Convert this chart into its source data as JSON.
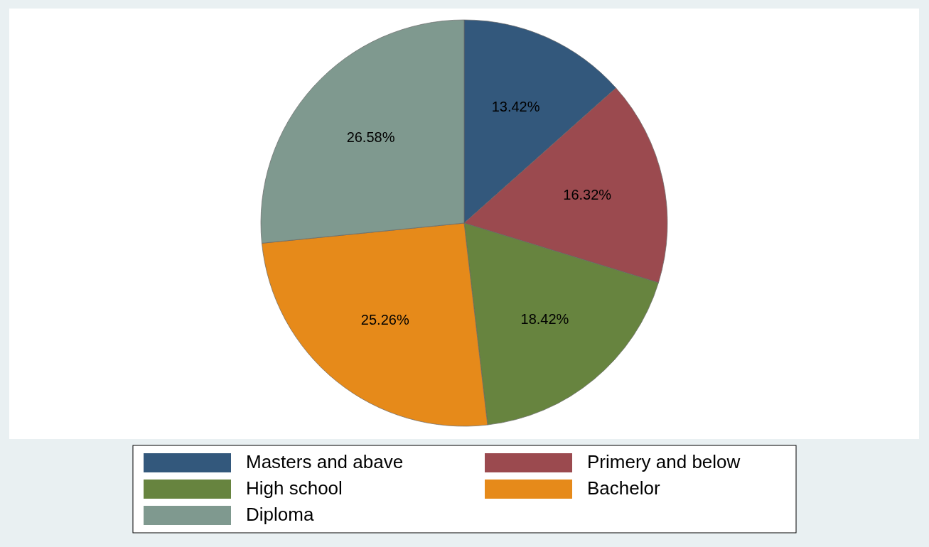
{
  "chart_data": {
    "type": "pie",
    "categories": [
      "Masters and abave",
      "Primery and below",
      "High school",
      "Bachelor",
      "Diploma"
    ],
    "values": [
      13.42,
      16.32,
      18.42,
      25.26,
      26.58
    ],
    "colors": [
      "#33587c",
      "#9b4a4f",
      "#67843f",
      "#e68a1a",
      "#7f998f"
    ],
    "value_labels": [
      "13.42%",
      "16.32%",
      "18.42%",
      "25.26%",
      "26.58%"
    ],
    "legend": "bottom"
  }
}
